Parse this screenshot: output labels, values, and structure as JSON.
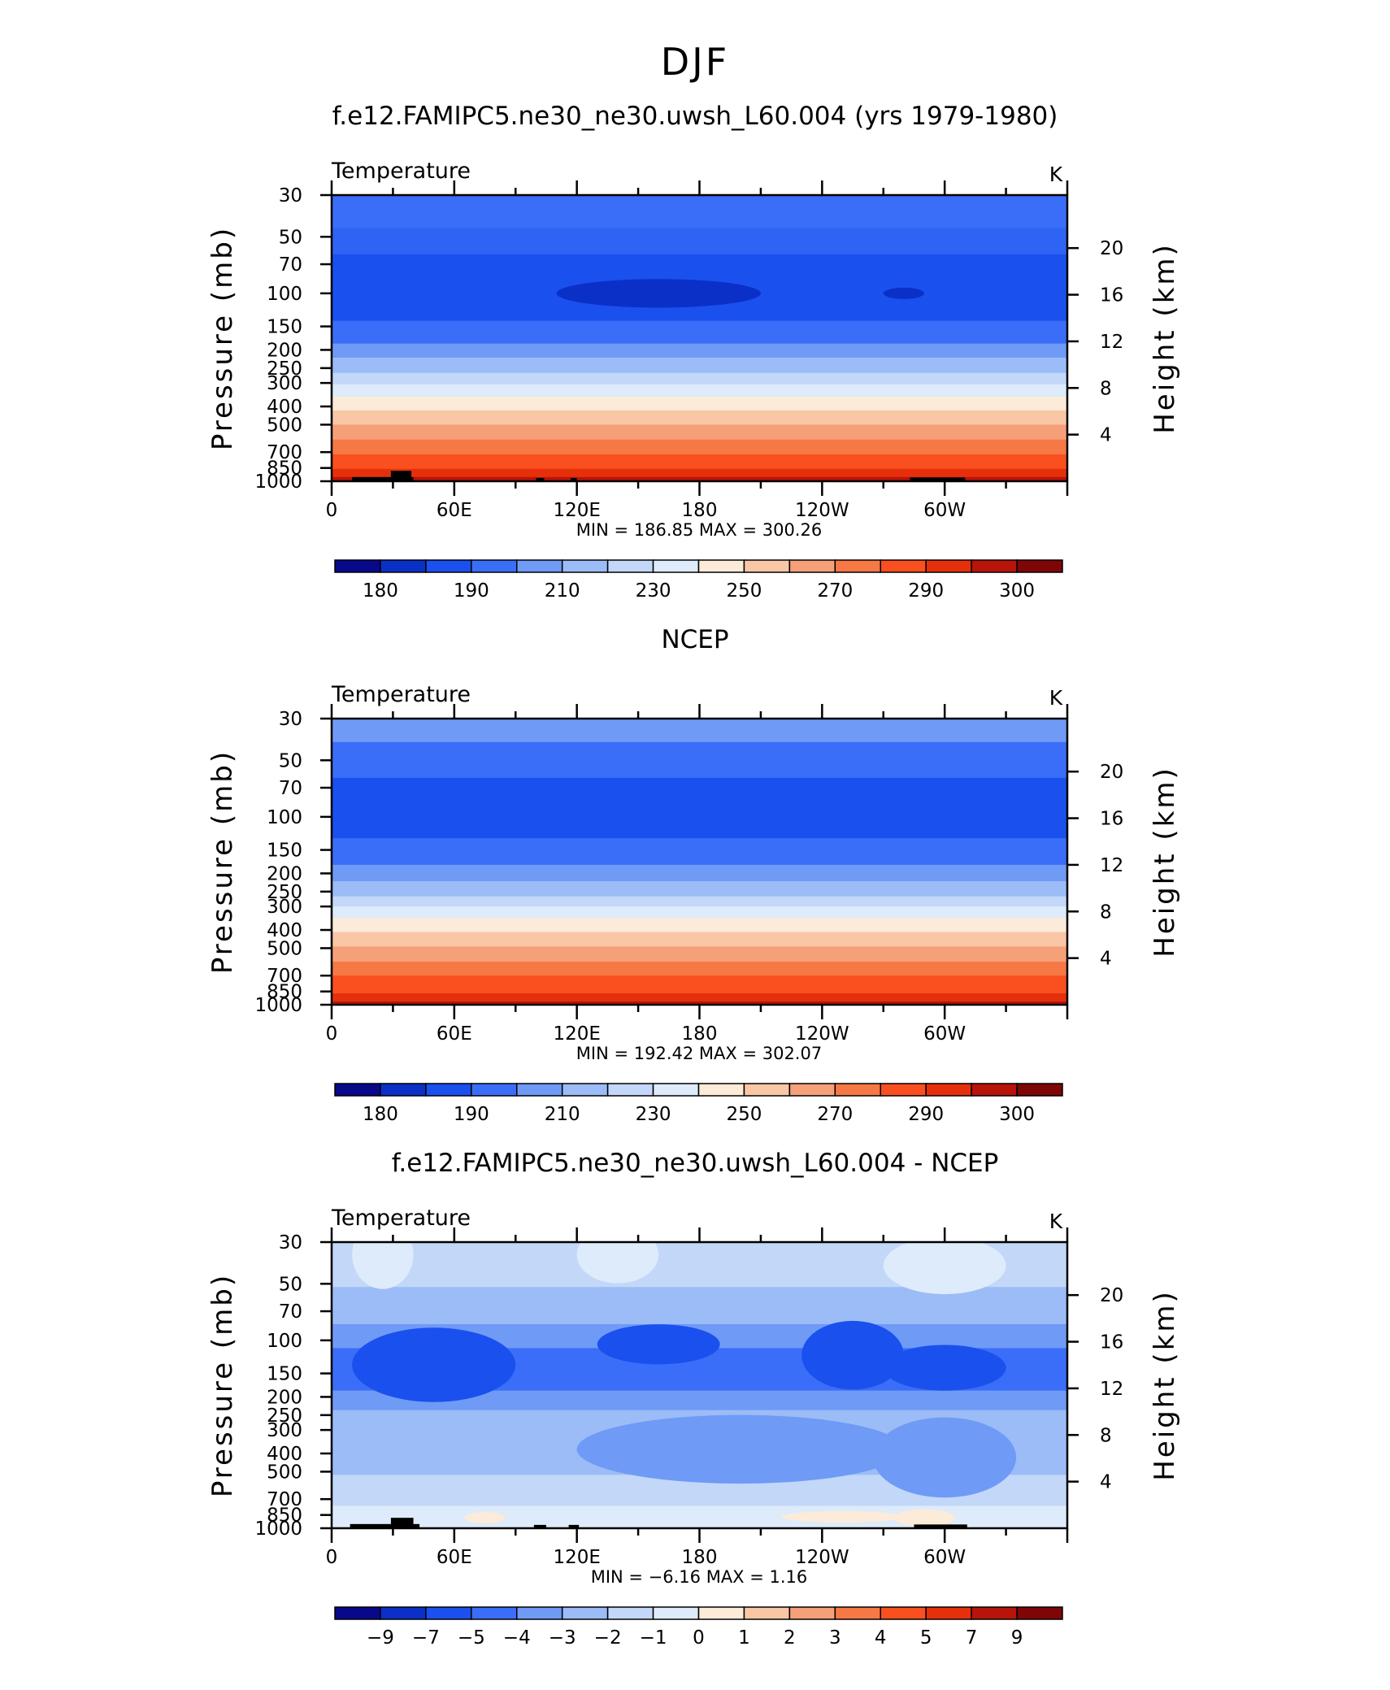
{
  "page": {
    "title": "DJF",
    "left_axis_label": "Pressure  (mb)",
    "right_axis_label": "Height  (km)"
  },
  "chart_data": [
    {
      "type": "heatmap",
      "title": "f.e12.FAMIPC5.ne30_ne30.uwsh_L60.004 (yrs 1979-1980)",
      "variable": "Temperature",
      "units": "K",
      "ylabel": "Pressure  (mb)",
      "y2label": "Height  (km)",
      "x_ticks": [
        "0",
        "60E",
        "120E",
        "180",
        "120W",
        "60W"
      ],
      "x_tick_values": [
        0,
        60,
        120,
        180,
        240,
        300
      ],
      "xlim": [
        0,
        360
      ],
      "y_ticks": [
        "30",
        "50",
        "70",
        "100",
        "150",
        "200",
        "250",
        "300",
        "400",
        "500",
        "700",
        "850",
        "1000"
      ],
      "y_tick_values": [
        30,
        50,
        70,
        100,
        150,
        200,
        250,
        300,
        400,
        500,
        700,
        850,
        1000
      ],
      "ylim": [
        1000,
        30
      ],
      "y_scale": "log",
      "y2_ticks": [
        "4",
        "8",
        "12",
        "16",
        "20"
      ],
      "y2_tick_values": [
        4,
        8,
        12,
        16,
        20
      ],
      "min_max_text": "MIN =  186.85   MAX =  300.26",
      "min": 186.85,
      "max": 300.26,
      "colorbar_labels": [
        "180",
        "190",
        "210",
        "230",
        "250",
        "270",
        "290",
        "300"
      ],
      "colorbar_colors": [
        "#08088a",
        "#0b30c8",
        "#1a50ee",
        "#3a6ef8",
        "#6f9af6",
        "#9bbcf6",
        "#c3d7f8",
        "#ddebfb",
        "#fbebd8",
        "#f9c6a6",
        "#f6a079",
        "#f67845",
        "#fa4f1e",
        "#e6300c",
        "#b8140a",
        "#7f0606"
      ],
      "bands": [
        {
          "p_top": 30,
          "p_bot": 45,
          "color": "#3a6ef8"
        },
        {
          "p_top": 45,
          "p_bot": 62,
          "color": "#2f63f4"
        },
        {
          "p_top": 62,
          "p_bot": 140,
          "color": "#1a50ee"
        },
        {
          "p_top": 140,
          "p_bot": 185,
          "color": "#3a6ef8"
        },
        {
          "p_top": 185,
          "p_bot": 220,
          "color": "#6f9af6"
        },
        {
          "p_top": 220,
          "p_bot": 265,
          "color": "#9bbcf6"
        },
        {
          "p_top": 265,
          "p_bot": 305,
          "color": "#c3d7f8"
        },
        {
          "p_top": 305,
          "p_bot": 355,
          "color": "#ddebfb"
        },
        {
          "p_top": 355,
          "p_bot": 420,
          "color": "#fbebd8"
        },
        {
          "p_top": 420,
          "p_bot": 500,
          "color": "#f9c6a6"
        },
        {
          "p_top": 500,
          "p_bot": 600,
          "color": "#f6a079"
        },
        {
          "p_top": 600,
          "p_bot": 720,
          "color": "#f67845"
        },
        {
          "p_top": 720,
          "p_bot": 860,
          "color": "#fa4f1e"
        },
        {
          "p_top": 860,
          "p_bot": 950,
          "color": "#e6300c"
        },
        {
          "p_top": 950,
          "p_bot": 1000,
          "color": "#b8140a"
        }
      ],
      "blobs": [
        {
          "lon": 160,
          "p": 100,
          "w": 100,
          "h": 0.05,
          "color": "#0b30c8"
        },
        {
          "lon": 280,
          "p": 100,
          "w": 20,
          "h": 0.02,
          "color": "#0b30c8"
        }
      ],
      "terrain": [
        {
          "lon0": 10,
          "lon1": 40,
          "p": 950
        },
        {
          "lon0": 29,
          "lon1": 39,
          "p": 880
        },
        {
          "lon0": 100,
          "lon1": 104,
          "p": 960
        },
        {
          "lon0": 117,
          "lon1": 120,
          "p": 960
        },
        {
          "lon0": 283,
          "lon1": 310,
          "p": 955
        }
      ]
    },
    {
      "type": "heatmap",
      "title": "NCEP",
      "variable": "Temperature",
      "units": "K",
      "ylabel": "Pressure  (mb)",
      "y2label": "Height  (km)",
      "x_ticks": [
        "0",
        "60E",
        "120E",
        "180",
        "120W",
        "60W"
      ],
      "x_tick_values": [
        0,
        60,
        120,
        180,
        240,
        300
      ],
      "xlim": [
        0,
        360
      ],
      "y_ticks": [
        "30",
        "50",
        "70",
        "100",
        "150",
        "200",
        "250",
        "300",
        "400",
        "500",
        "700",
        "850",
        "1000"
      ],
      "y_tick_values": [
        30,
        50,
        70,
        100,
        150,
        200,
        250,
        300,
        400,
        500,
        700,
        850,
        1000
      ],
      "ylim": [
        1000,
        30
      ],
      "y_scale": "log",
      "y2_ticks": [
        "4",
        "8",
        "12",
        "16",
        "20"
      ],
      "y2_tick_values": [
        4,
        8,
        12,
        16,
        20
      ],
      "min_max_text": "MIN =  192.42   MAX =  302.07",
      "min": 192.42,
      "max": 302.07,
      "colorbar_labels": [
        "180",
        "190",
        "210",
        "230",
        "250",
        "270",
        "290",
        "300"
      ],
      "colorbar_colors": [
        "#08088a",
        "#0b30c8",
        "#1a50ee",
        "#3a6ef8",
        "#6f9af6",
        "#9bbcf6",
        "#c3d7f8",
        "#ddebfb",
        "#fbebd8",
        "#f9c6a6",
        "#f6a079",
        "#f67845",
        "#fa4f1e",
        "#e6300c",
        "#b8140a",
        "#7f0606"
      ],
      "bands": [
        {
          "p_top": 30,
          "p_bot": 40,
          "color": "#6f9af6"
        },
        {
          "p_top": 40,
          "p_bot": 62,
          "color": "#3a6ef8"
        },
        {
          "p_top": 62,
          "p_bot": 130,
          "color": "#1a50ee"
        },
        {
          "p_top": 130,
          "p_bot": 180,
          "color": "#3a6ef8"
        },
        {
          "p_top": 180,
          "p_bot": 220,
          "color": "#6f9af6"
        },
        {
          "p_top": 220,
          "p_bot": 265,
          "color": "#9bbcf6"
        },
        {
          "p_top": 265,
          "p_bot": 300,
          "color": "#c3d7f8"
        },
        {
          "p_top": 300,
          "p_bot": 345,
          "color": "#ddebfb"
        },
        {
          "p_top": 345,
          "p_bot": 410,
          "color": "#fbebd8"
        },
        {
          "p_top": 410,
          "p_bot": 490,
          "color": "#f9c6a6"
        },
        {
          "p_top": 490,
          "p_bot": 590,
          "color": "#f6a079"
        },
        {
          "p_top": 590,
          "p_bot": 700,
          "color": "#f67845"
        },
        {
          "p_top": 700,
          "p_bot": 870,
          "color": "#fa4f1e"
        },
        {
          "p_top": 870,
          "p_bot": 960,
          "color": "#e6300c"
        },
        {
          "p_top": 960,
          "p_bot": 1000,
          "color": "#b8140a"
        }
      ],
      "blobs": [],
      "terrain": []
    },
    {
      "type": "heatmap",
      "title": "f.e12.FAMIPC5.ne30_ne30.uwsh_L60.004 - NCEP",
      "variable": "Temperature",
      "units": "K",
      "ylabel": "Pressure  (mb)",
      "y2label": "Height  (km)",
      "x_ticks": [
        "0",
        "60E",
        "120E",
        "180",
        "120W",
        "60W"
      ],
      "x_tick_values": [
        0,
        60,
        120,
        180,
        240,
        300
      ],
      "xlim": [
        0,
        360
      ],
      "y_ticks": [
        "30",
        "50",
        "70",
        "100",
        "150",
        "200",
        "250",
        "300",
        "400",
        "500",
        "700",
        "850",
        "1000"
      ],
      "y_tick_values": [
        30,
        50,
        70,
        100,
        150,
        200,
        250,
        300,
        400,
        500,
        700,
        850,
        1000
      ],
      "ylim": [
        1000,
        30
      ],
      "y_scale": "log",
      "y2_ticks": [
        "4",
        "8",
        "12",
        "16",
        "20"
      ],
      "y2_tick_values": [
        4,
        8,
        12,
        16,
        20
      ],
      "min_max_text": "MIN =    −6.16   MAX =     1.16",
      "min": -6.16,
      "max": 1.16,
      "colorbar_labels": [
        "−9",
        "−7",
        "−5",
        "−4",
        "−3",
        "−2",
        "−1",
        "0",
        "1",
        "2",
        "3",
        "4",
        "5",
        "7",
        "9"
      ],
      "colorbar_colors": [
        "#08088a",
        "#0b30c8",
        "#1a50ee",
        "#3a6ef8",
        "#6f9af6",
        "#9bbcf6",
        "#c3d7f8",
        "#ddebfb",
        "#fbebd8",
        "#f9c6a6",
        "#f6a079",
        "#f67845",
        "#fa4f1e",
        "#e6300c",
        "#b8140a",
        "#7f0606"
      ],
      "bands": [
        {
          "p_top": 30,
          "p_bot": 52,
          "color": "#c3d7f8"
        },
        {
          "p_top": 52,
          "p_bot": 82,
          "color": "#9bbcf6"
        },
        {
          "p_top": 82,
          "p_bot": 110,
          "color": "#6f9af6"
        },
        {
          "p_top": 110,
          "p_bot": 185,
          "color": "#3a6ef8"
        },
        {
          "p_top": 185,
          "p_bot": 235,
          "color": "#6f9af6"
        },
        {
          "p_top": 235,
          "p_bot": 520,
          "color": "#9bbcf6"
        },
        {
          "p_top": 520,
          "p_bot": 760,
          "color": "#c3d7f8"
        },
        {
          "p_top": 760,
          "p_bot": 1000,
          "color": "#ddebfb"
        }
      ],
      "blobs": [
        {
          "lon": 50,
          "p": 135,
          "w": 80,
          "h": 0.13,
          "color": "#1a50ee"
        },
        {
          "lon": 160,
          "p": 105,
          "w": 60,
          "h": 0.07,
          "color": "#1a50ee"
        },
        {
          "lon": 255,
          "p": 120,
          "w": 50,
          "h": 0.12,
          "color": "#1a50ee"
        },
        {
          "lon": 300,
          "p": 140,
          "w": 60,
          "h": 0.08,
          "color": "#1a50ee"
        },
        {
          "lon": 25,
          "p": 35,
          "w": 30,
          "h": 0.12,
          "color": "#ddebfb"
        },
        {
          "lon": 140,
          "p": 35,
          "w": 40,
          "h": 0.1,
          "color": "#ddebfb"
        },
        {
          "lon": 300,
          "p": 40,
          "w": 60,
          "h": 0.1,
          "color": "#ddebfb"
        },
        {
          "lon": 300,
          "p": 420,
          "w": 70,
          "h": 0.14,
          "color": "#6f9af6"
        },
        {
          "lon": 200,
          "p": 380,
          "w": 160,
          "h": 0.12,
          "color": "#6f9af6"
        },
        {
          "lon": 250,
          "p": 870,
          "w": 60,
          "h": 0.02,
          "color": "#fbebd8"
        },
        {
          "lon": 290,
          "p": 880,
          "w": 30,
          "h": 0.03,
          "color": "#fbebd8"
        },
        {
          "lon": 75,
          "p": 880,
          "w": 20,
          "h": 0.02,
          "color": "#fbebd8"
        }
      ],
      "terrain": [
        {
          "lon0": 9,
          "lon1": 43,
          "p": 950
        },
        {
          "lon0": 29,
          "lon1": 40,
          "p": 880
        },
        {
          "lon0": 99,
          "lon1": 105,
          "p": 960
        },
        {
          "lon0": 116,
          "lon1": 121,
          "p": 960
        },
        {
          "lon0": 285,
          "lon1": 311,
          "p": 955
        }
      ]
    }
  ]
}
